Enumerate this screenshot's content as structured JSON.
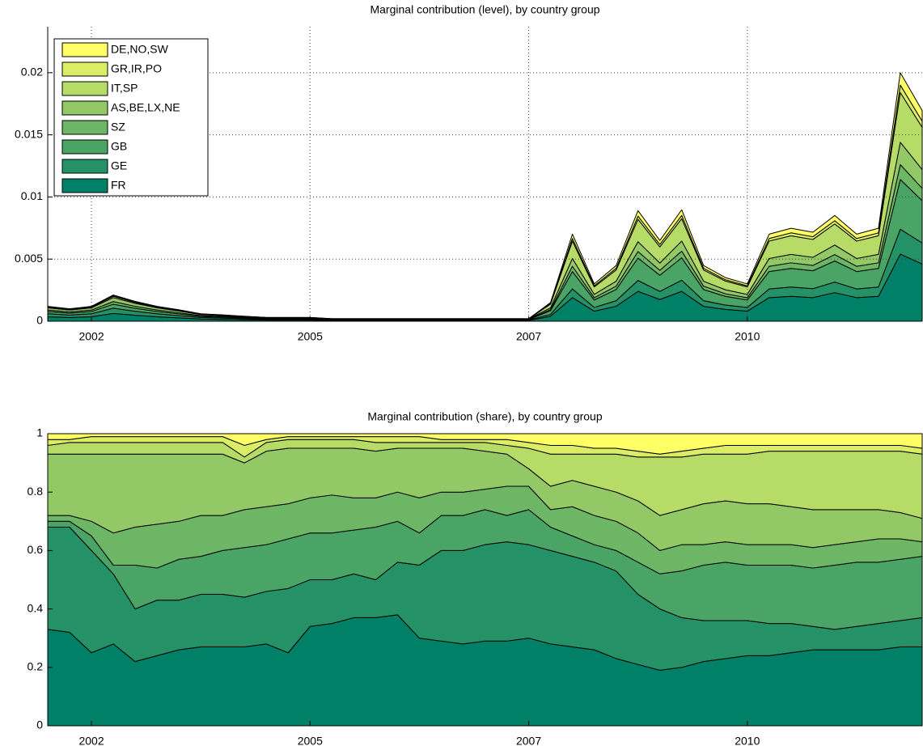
{
  "chart_data": [
    {
      "type": "area",
      "stacked": true,
      "title": "Marginal contribution (level), by country group",
      "categories": [
        null,
        null,
        "2002",
        null,
        null,
        null,
        null,
        null,
        null,
        null,
        null,
        null,
        "2005",
        null,
        null,
        null,
        null,
        null,
        null,
        null,
        null,
        null,
        "2007",
        null,
        null,
        null,
        null,
        null,
        null,
        null,
        null,
        null,
        "2010",
        null,
        null,
        null,
        null,
        null,
        null,
        null,
        null
      ],
      "ylim": [
        0,
        0.0237
      ],
      "yticks": [
        0,
        0.005,
        0.01,
        0.015,
        0.02
      ],
      "grid": true,
      "legend": "upper left",
      "series": [
        {
          "name": "FR",
          "color": "#008066",
          "values": [
            0.00036,
            0.0003,
            0.00036,
            0.00063,
            0.00048,
            0.00036,
            0.00027,
            0.00018,
            0.00015,
            0.00012,
            9e-05,
            9e-05,
            9e-05,
            6e-05,
            6e-05,
            6e-05,
            6e-05,
            6e-05,
            6e-05,
            6e-05,
            6e-05,
            6e-05,
            6e-05,
            0.0004,
            0.0019,
            0.00081,
            0.0012,
            0.0024,
            0.00175,
            0.0024,
            0.0012,
            0.00095,
            0.00081,
            0.0019,
            0.002,
            0.0019,
            0.0023,
            0.0019,
            0.002,
            0.0054,
            0.0046
          ]
        },
        {
          "name": "GE",
          "color": "#249266",
          "values": [
            0.00024,
            0.0002,
            0.00024,
            0.00042,
            0.00032,
            0.00024,
            0.00018,
            0.00012,
            0.0001,
            8e-05,
            6e-05,
            6e-05,
            6e-05,
            4e-05,
            4e-05,
            4e-05,
            4e-05,
            4e-05,
            4e-05,
            4e-05,
            4e-05,
            4e-05,
            4e-05,
            0.00015,
            0.0007,
            0.0003,
            0.00045,
            0.00088,
            0.00065,
            0.0009,
            0.00045,
            0.00035,
            0.0003,
            0.0007,
            0.00075,
            0.00072,
            0.00085,
            0.0007,
            0.00075,
            0.002,
            0.0017
          ]
        },
        {
          "name": "GB",
          "color": "#49a466",
          "values": [
            0.00018,
            0.00015,
            0.00018,
            0.00032,
            0.00024,
            0.00018,
            0.00014,
            9e-05,
            8e-05,
            6e-05,
            5e-05,
            5e-05,
            5e-05,
            3e-05,
            3e-05,
            3e-05,
            3e-05,
            3e-05,
            3e-05,
            3e-05,
            3e-05,
            3e-05,
            3e-05,
            0.0003,
            0.0014,
            0.0006,
            0.0009,
            0.0018,
            0.0013,
            0.0018,
            0.0009,
            0.0007,
            0.0006,
            0.0014,
            0.0015,
            0.00144,
            0.0017,
            0.0014,
            0.0015,
            0.004,
            0.0034
          ]
        },
        {
          "name": "SZ",
          "color": "#6db666",
          "values": [
            0.00012,
            0.0001,
            0.00012,
            0.00021,
            0.00016,
            0.00012,
            9e-05,
            6e-05,
            5e-05,
            4e-05,
            3e-05,
            3e-05,
            3e-05,
            2e-05,
            2e-05,
            2e-05,
            2e-05,
            2e-05,
            2e-05,
            2e-05,
            2e-05,
            2e-05,
            2e-05,
            9e-05,
            0.00042,
            0.00018,
            0.00027,
            0.00053,
            0.00039,
            0.00054,
            0.00027,
            0.00021,
            0.00018,
            0.00042,
            0.00045,
            0.00043,
            0.00051,
            0.00042,
            0.00045,
            0.0012,
            0.001
          ]
        },
        {
          "name": "AS,BE,LX,NE",
          "color": "#92c866",
          "values": [
            0.00018,
            0.00015,
            0.00018,
            0.00032,
            0.00024,
            0.00018,
            0.00014,
            9e-05,
            8e-05,
            6e-05,
            5e-05,
            5e-05,
            5e-05,
            3e-05,
            3e-05,
            3e-05,
            3e-05,
            3e-05,
            3e-05,
            3e-05,
            3e-05,
            3e-05,
            3e-05,
            0.00014,
            0.00063,
            0.00027,
            0.0004,
            0.00079,
            0.00059,
            0.00081,
            0.0004,
            0.00032,
            0.00027,
            0.00063,
            0.00068,
            0.00065,
            0.00077,
            0.00063,
            0.00068,
            0.0018,
            0.0015
          ]
        },
        {
          "name": "IT,SP",
          "color": "#b6db66",
          "values": [
            6e-05,
            5e-05,
            6e-05,
            0.00011,
            8e-05,
            6e-05,
            5e-05,
            3e-05,
            3e-05,
            2e-05,
            1e-05,
            1e-05,
            1e-05,
            1e-05,
            1e-05,
            1e-05,
            1e-05,
            1e-05,
            1e-05,
            1e-05,
            1e-05,
            1e-05,
            1e-05,
            0.0003,
            0.0014,
            0.0006,
            0.0009,
            0.0018,
            0.0013,
            0.0018,
            0.0009,
            0.0007,
            0.0006,
            0.0014,
            0.0015,
            0.00144,
            0.0017,
            0.0014,
            0.0015,
            0.004,
            0.0034
          ]
        },
        {
          "name": "GR,IR,PO",
          "color": "#dbed66",
          "values": [
            4e-05,
            3e-05,
            4e-05,
            6e-05,
            5e-05,
            4e-05,
            3e-05,
            2e-05,
            1e-05,
            1e-05,
            1e-05,
            1e-05,
            1e-05,
            1e-05,
            1e-05,
            1e-05,
            1e-05,
            1e-05,
            1e-05,
            1e-05,
            1e-05,
            1e-05,
            1e-05,
            5e-05,
            0.00021,
            9e-05,
            0.00014,
            0.00026,
            0.0002,
            0.00027,
            0.00014,
            0.00011,
            9e-05,
            0.00021,
            0.00023,
            0.00022,
            0.00026,
            0.00021,
            0.00023,
            0.0006,
            0.0005
          ]
        },
        {
          "name": "DE,NO,SW",
          "color": "#ffff66",
          "values": [
            2e-05,
            2e-05,
            2e-05,
            4e-05,
            3e-05,
            2e-05,
            2e-05,
            1e-05,
            1e-05,
            1e-05,
            0,
            0,
            0,
            0,
            0,
            0,
            0,
            0,
            0,
            0,
            0,
            0,
            0,
            7e-05,
            0.00035,
            0.00015,
            0.00022,
            0.00044,
            0.00032,
            0.00045,
            0.00022,
            0.00017,
            0.00015,
            0.00035,
            0.00037,
            0.00036,
            0.00042,
            0.00035,
            0.00037,
            0.001,
            0.00085
          ]
        }
      ]
    },
    {
      "type": "area",
      "stacked": true,
      "title": "Marginal contribution (share), by country group",
      "categories": [
        null,
        null,
        "2002",
        null,
        null,
        null,
        null,
        null,
        null,
        null,
        null,
        null,
        "2005",
        null,
        null,
        null,
        null,
        null,
        null,
        null,
        null,
        null,
        "2007",
        null,
        null,
        null,
        null,
        null,
        null,
        null,
        null,
        null,
        "2010",
        null,
        null,
        null,
        null,
        null,
        null,
        null,
        null
      ],
      "ylim": [
        0,
        1
      ],
      "yticks": [
        0,
        0.2,
        0.4,
        0.6,
        0.8,
        1
      ],
      "grid": false,
      "series": [
        {
          "color": "#008066",
          "values": [
            0.33,
            0.32,
            0.25,
            0.28,
            0.22,
            0.24,
            0.26,
            0.27,
            0.27,
            0.27,
            0.28,
            0.25,
            0.34,
            0.35,
            0.37,
            0.37,
            0.38,
            0.3,
            0.29,
            0.28,
            0.29,
            0.29,
            0.3,
            0.28,
            0.27,
            0.26,
            0.23,
            0.21,
            0.19,
            0.2,
            0.22,
            0.23,
            0.24,
            0.24,
            0.25,
            0.26,
            0.26,
            0.26,
            0.26,
            0.27,
            0.27
          ]
        },
        {
          "color": "#249266",
          "values": [
            0.35,
            0.36,
            0.35,
            0.24,
            0.18,
            0.19,
            0.17,
            0.18,
            0.18,
            0.17,
            0.18,
            0.22,
            0.16,
            0.15,
            0.15,
            0.13,
            0.18,
            0.25,
            0.31,
            0.32,
            0.33,
            0.34,
            0.32,
            0.32,
            0.31,
            0.3,
            0.3,
            0.24,
            0.21,
            0.17,
            0.14,
            0.13,
            0.12,
            0.11,
            0.1,
            0.08,
            0.07,
            0.08,
            0.09,
            0.09,
            0.1
          ]
        },
        {
          "color": "#49a466",
          "values": [
            0.02,
            0.02,
            0.05,
            0.03,
            0.15,
            0.11,
            0.14,
            0.13,
            0.15,
            0.17,
            0.16,
            0.17,
            0.16,
            0.16,
            0.15,
            0.18,
            0.14,
            0.11,
            0.12,
            0.12,
            0.12,
            0.09,
            0.12,
            0.08,
            0.07,
            0.06,
            0.07,
            0.11,
            0.12,
            0.16,
            0.19,
            0.2,
            0.19,
            0.2,
            0.2,
            0.2,
            0.22,
            0.22,
            0.21,
            0.21,
            0.21
          ]
        },
        {
          "color": "#6db666",
          "values": [
            0.02,
            0.02,
            0.05,
            0.11,
            0.13,
            0.15,
            0.13,
            0.14,
            0.12,
            0.13,
            0.13,
            0.12,
            0.12,
            0.13,
            0.11,
            0.1,
            0.1,
            0.12,
            0.08,
            0.08,
            0.07,
            0.1,
            0.08,
            0.06,
            0.1,
            0.1,
            0.1,
            0.1,
            0.08,
            0.09,
            0.07,
            0.07,
            0.07,
            0.07,
            0.07,
            0.07,
            0.07,
            0.07,
            0.08,
            0.07,
            0.05
          ]
        },
        {
          "color": "#92c866",
          "values": [
            0.21,
            0.21,
            0.23,
            0.27,
            0.25,
            0.24,
            0.23,
            0.21,
            0.21,
            0.16,
            0.19,
            0.19,
            0.17,
            0.16,
            0.17,
            0.16,
            0.15,
            0.17,
            0.15,
            0.15,
            0.13,
            0.11,
            0.06,
            0.08,
            0.09,
            0.1,
            0.1,
            0.11,
            0.12,
            0.12,
            0.14,
            0.14,
            0.14,
            0.14,
            0.13,
            0.13,
            0.12,
            0.11,
            0.1,
            0.09,
            0.08
          ]
        },
        {
          "color": "#b6db66",
          "values": [
            0.03,
            0.04,
            0.04,
            0.04,
            0.04,
            0.04,
            0.04,
            0.04,
            0.04,
            0.02,
            0.03,
            0.03,
            0.03,
            0.03,
            0.03,
            0.03,
            0.02,
            0.02,
            0.02,
            0.02,
            0.03,
            0.03,
            0.07,
            0.11,
            0.09,
            0.11,
            0.13,
            0.15,
            0.2,
            0.18,
            0.17,
            0.16,
            0.17,
            0.18,
            0.19,
            0.2,
            0.2,
            0.2,
            0.2,
            0.21,
            0.22
          ]
        },
        {
          "color": "#dbed66",
          "values": [
            0.02,
            0.01,
            0.02,
            0.02,
            0.02,
            0.02,
            0.02,
            0.02,
            0.02,
            0.04,
            0.01,
            0.01,
            0.01,
            0.01,
            0.01,
            0.02,
            0.02,
            0.02,
            0.01,
            0.01,
            0.01,
            0.02,
            0.02,
            0.03,
            0.03,
            0.02,
            0.02,
            0.02,
            0.01,
            0.02,
            0.02,
            0.03,
            0.03,
            0.02,
            0.02,
            0.02,
            0.02,
            0.02,
            0.02,
            0.02,
            0.02
          ]
        },
        {
          "color": "#ffff66",
          "values": [
            0.02,
            0.02,
            0.01,
            0.01,
            0.01,
            0.01,
            0.01,
            0.01,
            0.01,
            0.04,
            0.02,
            0.01,
            0.01,
            0.01,
            0.01,
            0.01,
            0.01,
            0.01,
            0.02,
            0.02,
            0.02,
            0.02,
            0.03,
            0.04,
            0.04,
            0.05,
            0.05,
            0.06,
            0.07,
            0.06,
            0.05,
            0.04,
            0.04,
            0.04,
            0.04,
            0.04,
            0.04,
            0.04,
            0.04,
            0.04,
            0.05
          ]
        }
      ]
    }
  ]
}
